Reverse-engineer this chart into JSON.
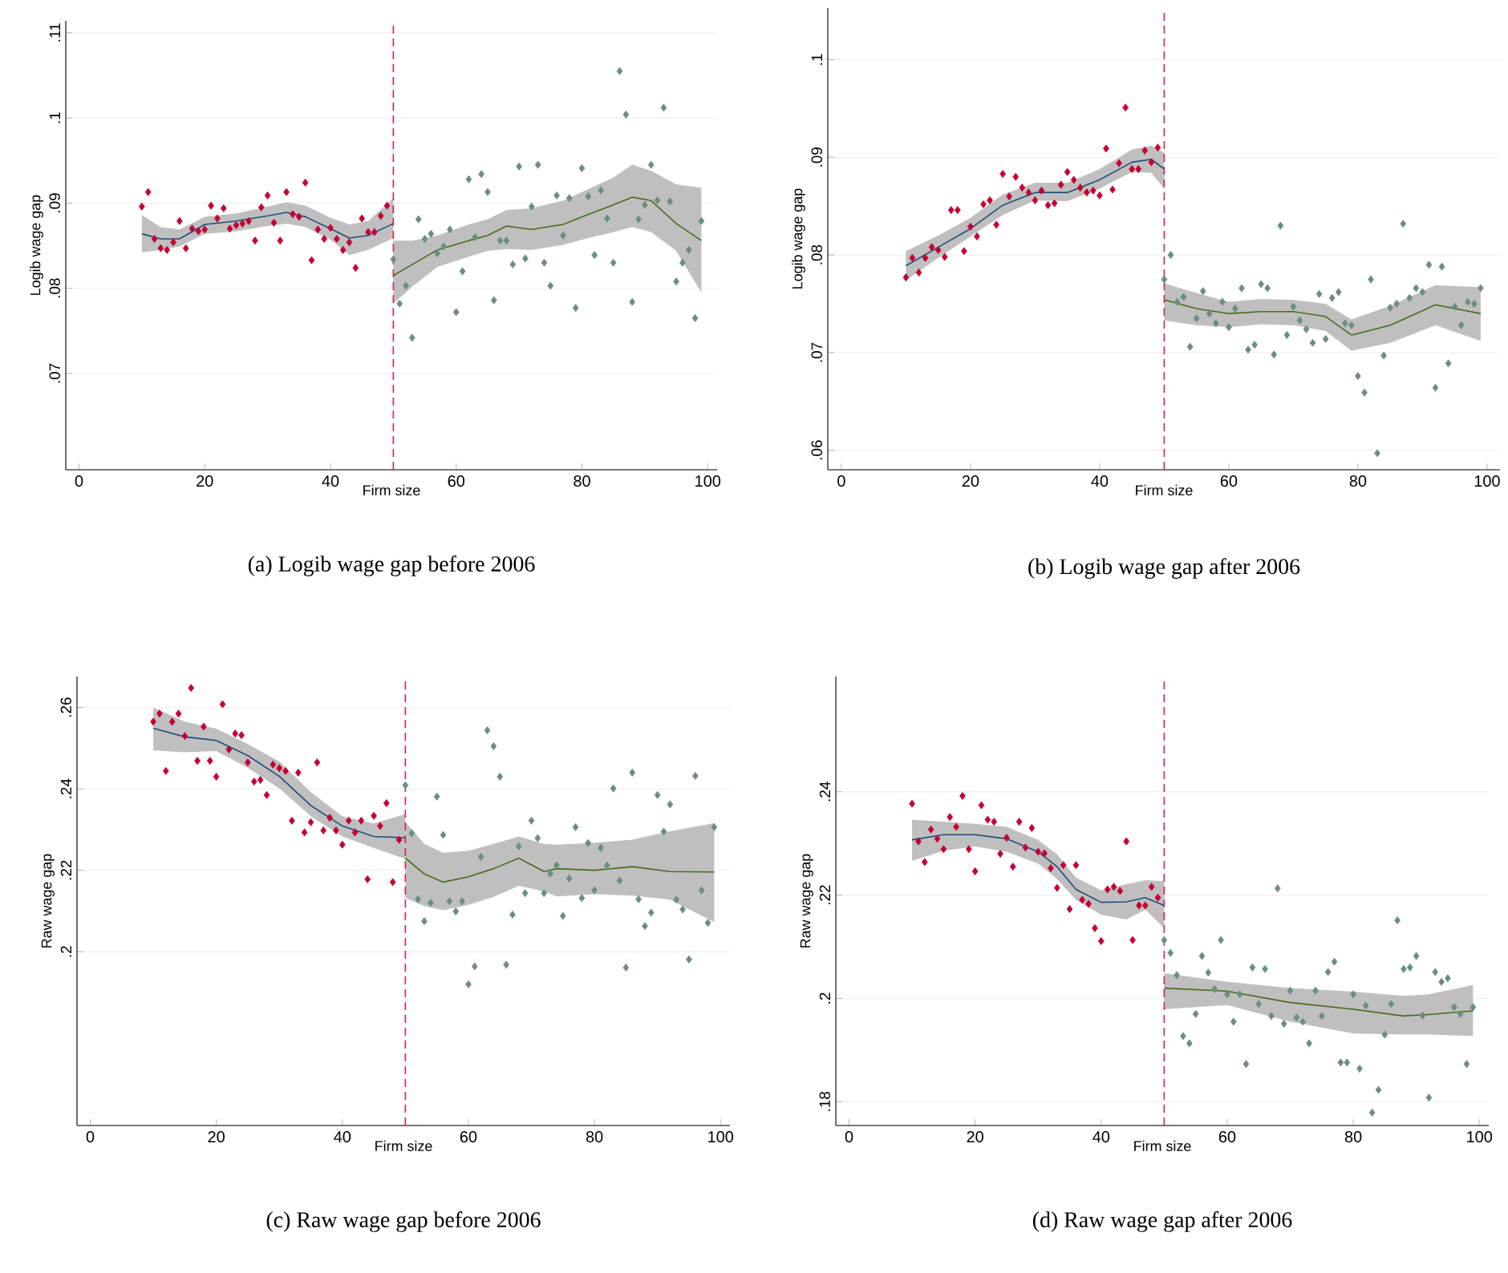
{
  "chart_data": [
    {
      "type": "scatter",
      "title": "(a) Logib wage gap before 2006",
      "xlabel": "Firm size",
      "ylabel": "Logib wage gap",
      "xlim": [
        -2.1,
        101.5
      ],
      "ylim": [
        0.0587,
        0.1114
      ],
      "xticks": [
        0,
        20,
        40,
        60,
        80,
        100
      ],
      "yticks": [
        {
          "value": 0.07,
          "label": ".07"
        },
        {
          "value": 0.08,
          "label": ".08"
        },
        {
          "value": 0.09,
          "label": ".09"
        },
        {
          "value": 0.1,
          "label": ".1"
        },
        {
          "value": 0.11,
          "label": ".11"
        }
      ],
      "grid": "y",
      "ref_lines": [
        {
          "axis": "x",
          "value": 50,
          "color": "#d6204a",
          "line_style": "dashed"
        }
      ],
      "series": [
        {
          "type": "line",
          "color": "#1f4e79",
          "marker": "none",
          "x": [
            10,
            13,
            16,
            20,
            25,
            30,
            33,
            36,
            40,
            43,
            46,
            50
          ],
          "values": [
            0.0864,
            0.0858,
            0.0858,
            0.0875,
            0.0879,
            0.0885,
            0.0889,
            0.0884,
            0.087,
            0.0859,
            0.0862,
            0.0876
          ],
          "lower": [
            0.0842,
            0.0845,
            0.0849,
            0.0864,
            0.0867,
            0.0873,
            0.0876,
            0.0872,
            0.0857,
            0.0839,
            0.0845,
            0.0859
          ],
          "upper": [
            0.0886,
            0.0872,
            0.0869,
            0.0884,
            0.0888,
            0.0896,
            0.0901,
            0.0897,
            0.0883,
            0.0875,
            0.0879,
            0.0906
          ]
        },
        {
          "type": "line",
          "color": "#4a6b1e",
          "marker": "none",
          "x": [
            50,
            53,
            57,
            62,
            65,
            68,
            72,
            77,
            80,
            85,
            88,
            91,
            95,
            99
          ],
          "values": [
            0.0815,
            0.0828,
            0.0845,
            0.0856,
            0.0862,
            0.0873,
            0.0869,
            0.0875,
            0.0884,
            0.0898,
            0.0907,
            0.0903,
            0.0876,
            0.0856
          ],
          "lower": [
            0.0782,
            0.0802,
            0.0825,
            0.0837,
            0.0844,
            0.0846,
            0.0845,
            0.0851,
            0.0857,
            0.0866,
            0.0872,
            0.0866,
            0.0844,
            0.0795
          ],
          "upper": [
            0.0856,
            0.0856,
            0.0862,
            0.0875,
            0.0881,
            0.0892,
            0.0894,
            0.0903,
            0.0913,
            0.093,
            0.0945,
            0.0938,
            0.0922,
            0.0918
          ]
        },
        {
          "color": "#c40233",
          "marker": "diamond",
          "x": [
            10,
            11,
            12,
            13,
            14,
            15,
            16,
            17,
            18,
            19,
            20,
            21,
            22,
            23,
            24,
            25,
            26,
            27,
            28,
            29,
            30,
            31,
            32,
            33,
            34,
            35,
            36,
            37,
            38,
            39,
            40,
            41,
            42,
            43,
            44,
            45,
            46,
            47,
            48,
            49
          ],
          "values": [
            0.0896,
            0.0913,
            0.0858,
            0.0847,
            0.0845,
            0.0854,
            0.0879,
            0.0847,
            0.087,
            0.0867,
            0.0869,
            0.0897,
            0.0882,
            0.0894,
            0.087,
            0.0874,
            0.0876,
            0.0879,
            0.0856,
            0.0895,
            0.0909,
            0.0877,
            0.0856,
            0.0913,
            0.0887,
            0.0884,
            0.0924,
            0.0833,
            0.0869,
            0.0858,
            0.0871,
            0.0858,
            0.0845,
            0.0854,
            0.0824,
            0.0882,
            0.0866,
            0.0866,
            0.0885,
            0.0897
          ]
        },
        {
          "color": "#6b8e7f",
          "marker": "diamond",
          "x": [
            50,
            51,
            52,
            53,
            54,
            55,
            56,
            57,
            58,
            59,
            60,
            61,
            62,
            63,
            64,
            65,
            66,
            67,
            68,
            69,
            70,
            71,
            72,
            73,
            74,
            75,
            76,
            77,
            78,
            79,
            80,
            81,
            82,
            83,
            84,
            85,
            86,
            87,
            88,
            89,
            90,
            91,
            92,
            93,
            94,
            95,
            96,
            97,
            98,
            99
          ],
          "values": [
            0.0834,
            0.0782,
            0.0803,
            0.0742,
            0.0881,
            0.0858,
            0.0864,
            0.0841,
            0.0849,
            0.0869,
            0.0772,
            0.082,
            0.0928,
            0.086,
            0.0934,
            0.0913,
            0.0786,
            0.0856,
            0.0856,
            0.0828,
            0.0943,
            0.0835,
            0.0896,
            0.0945,
            0.083,
            0.0803,
            0.0909,
            0.0862,
            0.0906,
            0.0777,
            0.0941,
            0.0908,
            0.0839,
            0.0915,
            0.0882,
            0.083,
            0.1055,
            0.1004,
            0.0784,
            0.0881,
            0.0898,
            0.0945,
            0.0903,
            0.1012,
            0.0902,
            0.0808,
            0.083,
            0.0845,
            0.0765,
            0.0879
          ]
        }
      ]
    },
    {
      "type": "scatter",
      "title": "(b) Logib wage gap after 2006",
      "xlabel": "Firm size",
      "ylabel": "Logib wage gap",
      "xlim": [
        -2.1,
        102
      ],
      "ylim": [
        0.058,
        0.1053
      ],
      "xticks": [
        0,
        20,
        40,
        60,
        80,
        100
      ],
      "yticks": [
        {
          "value": 0.06,
          "label": ".06"
        },
        {
          "value": 0.07,
          "label": ".07"
        },
        {
          "value": 0.08,
          "label": ".08"
        },
        {
          "value": 0.09,
          "label": ".09"
        },
        {
          "value": 0.1,
          "label": ".1"
        }
      ],
      "grid": "y",
      "ref_lines": [
        {
          "axis": "x",
          "value": 50,
          "color": "#d6204a",
          "line_style": "dashed"
        }
      ],
      "series": [
        {
          "type": "line",
          "color": "#1f4e79",
          "marker": "none",
          "x": [
            10,
            15,
            20,
            25,
            30,
            35,
            40,
            45,
            48,
            50
          ],
          "values": [
            0.0789,
            0.0808,
            0.0827,
            0.0851,
            0.0864,
            0.0864,
            0.0877,
            0.0895,
            0.0898,
            0.0888
          ],
          "lower": [
            0.0774,
            0.0797,
            0.0819,
            0.0841,
            0.0856,
            0.0855,
            0.0868,
            0.0885,
            0.0884,
            0.0868
          ],
          "upper": [
            0.0804,
            0.082,
            0.0838,
            0.0862,
            0.0874,
            0.0874,
            0.0888,
            0.0908,
            0.0912,
            0.0905
          ]
        },
        {
          "type": "line",
          "color": "#4a6b1e",
          "marker": "none",
          "x": [
            50,
            55,
            60,
            65,
            70,
            75,
            79,
            85,
            92,
            99
          ],
          "values": [
            0.0754,
            0.0745,
            0.074,
            0.0742,
            0.0742,
            0.0737,
            0.0718,
            0.0728,
            0.0749,
            0.074
          ],
          "lower": [
            0.0733,
            0.0728,
            0.0726,
            0.0729,
            0.0728,
            0.0722,
            0.0702,
            0.071,
            0.0728,
            0.0712
          ],
          "upper": [
            0.0771,
            0.0761,
            0.0752,
            0.0755,
            0.0754,
            0.075,
            0.0734,
            0.0748,
            0.0769,
            0.0767
          ]
        },
        {
          "color": "#c40233",
          "marker": "diamond",
          "x": [
            10,
            11,
            12,
            13,
            14,
            15,
            16,
            17,
            18,
            19,
            20,
            21,
            22,
            23,
            24,
            25,
            26,
            27,
            28,
            29,
            30,
            31,
            32,
            33,
            34,
            35,
            36,
            37,
            38,
            39,
            40,
            41,
            42,
            43,
            44,
            45,
            46,
            47,
            48,
            49
          ],
          "values": [
            0.0777,
            0.0797,
            0.0782,
            0.0797,
            0.0808,
            0.0805,
            0.0798,
            0.0846,
            0.0846,
            0.0804,
            0.0829,
            0.0819,
            0.0852,
            0.0856,
            0.0831,
            0.0883,
            0.086,
            0.088,
            0.0869,
            0.0864,
            0.0856,
            0.0866,
            0.0851,
            0.0853,
            0.0872,
            0.0885,
            0.0877,
            0.0869,
            0.0864,
            0.0866,
            0.0861,
            0.0909,
            0.0867,
            0.0894,
            0.0951,
            0.0888,
            0.0888,
            0.0907,
            0.0895,
            0.091
          ]
        },
        {
          "color": "#6b8e7f",
          "marker": "diamond",
          "x": [
            50,
            51,
            52,
            53,
            54,
            55,
            56,
            57,
            58,
            59,
            60,
            61,
            62,
            63,
            64,
            65,
            66,
            67,
            68,
            69,
            70,
            71,
            72,
            73,
            74,
            75,
            76,
            77,
            78,
            79,
            80,
            81,
            82,
            83,
            84,
            85,
            86,
            87,
            88,
            89,
            90,
            91,
            92,
            93,
            94,
            95,
            96,
            97,
            98,
            99
          ],
          "values": [
            0.0775,
            0.08,
            0.0752,
            0.0757,
            0.0706,
            0.0735,
            0.0763,
            0.074,
            0.073,
            0.0752,
            0.0726,
            0.0745,
            0.0766,
            0.0703,
            0.0708,
            0.077,
            0.0766,
            0.0698,
            0.083,
            0.0718,
            0.0747,
            0.0733,
            0.0724,
            0.071,
            0.076,
            0.0714,
            0.0756,
            0.0762,
            0.073,
            0.0728,
            0.0676,
            0.0659,
            0.0775,
            0.0597,
            0.0697,
            0.0746,
            0.075,
            0.0832,
            0.0756,
            0.0766,
            0.0762,
            0.079,
            0.0664,
            0.0788,
            0.0689,
            0.0747,
            0.0728,
            0.0752,
            0.075,
            0.0766
          ]
        }
      ]
    },
    {
      "type": "scatter",
      "title": "(c) Raw wage gap before 2006",
      "xlabel": "Firm size",
      "ylabel": "Raw wage gap",
      "xlim": [
        -2.1,
        101.5
      ],
      "ylim": [
        0.1573,
        0.2676
      ],
      "xticks": [
        0,
        20,
        40,
        60,
        80,
        100
      ],
      "yticks": [
        {
          "value": 0.2,
          "label": ".2"
        },
        {
          "value": 0.22,
          "label": ".22"
        },
        {
          "value": 0.24,
          "label": ".24"
        },
        {
          "value": 0.26,
          "label": ".26"
        }
      ],
      "grid": "y",
      "ref_lines": [
        {
          "axis": "x",
          "value": 50,
          "color": "#d6204a",
          "line_style": "dashed"
        }
      ],
      "series": [
        {
          "type": "line",
          "color": "#1f4e79",
          "marker": "none",
          "x": [
            10,
            15,
            20,
            25,
            30,
            35,
            40,
            45,
            50
          ],
          "values": [
            0.2549,
            0.2528,
            0.2519,
            0.2482,
            0.2431,
            0.2359,
            0.2309,
            0.2283,
            0.228
          ],
          "lower": [
            0.2495,
            0.249,
            0.2493,
            0.2452,
            0.2401,
            0.2333,
            0.2283,
            0.2255,
            0.2228
          ],
          "upper": [
            0.26,
            0.2565,
            0.2548,
            0.251,
            0.2467,
            0.2392,
            0.2333,
            0.2315,
            0.2338
          ]
        },
        {
          "type": "line",
          "color": "#4a6b1e",
          "marker": "none",
          "x": [
            50,
            53,
            56,
            60,
            64,
            68,
            72,
            74,
            80,
            86,
            92,
            99
          ],
          "values": [
            0.223,
            0.2191,
            0.2171,
            0.2184,
            0.2204,
            0.223,
            0.2197,
            0.2204,
            0.22,
            0.2209,
            0.2197,
            0.2196
          ],
          "lower": [
            0.2132,
            0.2112,
            0.2102,
            0.2115,
            0.2135,
            0.2162,
            0.2148,
            0.2136,
            0.2141,
            0.2138,
            0.2128,
            0.2073
          ],
          "upper": [
            0.2319,
            0.2265,
            0.2243,
            0.2248,
            0.2265,
            0.2283,
            0.2265,
            0.2263,
            0.2268,
            0.2275,
            0.2296,
            0.2316
          ]
        },
        {
          "color": "#c40233",
          "marker": "diamond",
          "x": [
            10,
            11,
            12,
            13,
            14,
            15,
            16,
            17,
            18,
            19,
            20,
            21,
            22,
            23,
            24,
            25,
            26,
            27,
            28,
            29,
            30,
            31,
            32,
            33,
            34,
            35,
            36,
            37,
            38,
            39,
            40,
            41,
            42,
            43,
            44,
            45,
            46,
            47,
            48,
            49
          ],
          "values": [
            0.2565,
            0.2585,
            0.2444,
            0.2565,
            0.2585,
            0.253,
            0.2648,
            0.2469,
            0.2553,
            0.2469,
            0.243,
            0.2608,
            0.2497,
            0.2536,
            0.2532,
            0.2465,
            0.2418,
            0.2422,
            0.2385,
            0.246,
            0.2451,
            0.2444,
            0.2322,
            0.244,
            0.2293,
            0.2318,
            0.2465,
            0.2298,
            0.2329,
            0.2298,
            0.2263,
            0.2322,
            0.2293,
            0.2322,
            0.2178,
            0.2334,
            0.2309,
            0.2365,
            0.2171,
            0.2275
          ]
        },
        {
          "color": "#6b8e7f",
          "marker": "diamond",
          "x": [
            50,
            51,
            52,
            53,
            54,
            55,
            56,
            57,
            58,
            59,
            60,
            61,
            62,
            63,
            64,
            65,
            66,
            67,
            68,
            69,
            70,
            71,
            72,
            73,
            74,
            75,
            76,
            77,
            78,
            79,
            80,
            81,
            82,
            83,
            84,
            85,
            86,
            87,
            88,
            89,
            90,
            91,
            92,
            93,
            94,
            95,
            96,
            97,
            98,
            99
          ],
          "values": [
            0.2409,
            0.2291,
            0.2129,
            0.2075,
            0.212,
            0.2381,
            0.2287,
            0.2124,
            0.2099,
            0.2124,
            0.192,
            0.1964,
            0.2233,
            0.2544,
            0.2505,
            0.243,
            0.1968,
            0.2091,
            0.2259,
            0.2144,
            0.2322,
            0.2279,
            0.2144,
            0.2192,
            0.2212,
            0.2088,
            0.218,
            0.2306,
            0.2132,
            0.2267,
            0.2151,
            0.2255,
            0.2212,
            0.2401,
            0.2175,
            0.1961,
            0.244,
            0.2129,
            0.2063,
            0.2096,
            0.2385,
            0.2295,
            0.2362,
            0.2128,
            0.2104,
            0.1981,
            0.2432,
            0.2151,
            0.2071,
            0.2306
          ]
        }
      ]
    },
    {
      "type": "scatter",
      "title": "(d) Raw wage gap after 2006",
      "xlabel": "Firm size",
      "ylabel": "Raw wage gap",
      "xlim": [
        -2.1,
        101.5
      ],
      "ylim": [
        0.1754,
        0.2623
      ],
      "xticks": [
        0,
        20,
        40,
        60,
        80,
        100
      ],
      "yticks": [
        {
          "value": 0.18,
          "label": ".18"
        },
        {
          "value": 0.2,
          "label": ".2"
        },
        {
          "value": 0.22,
          "label": ".22"
        },
        {
          "value": 0.24,
          "label": ".24"
        }
      ],
      "grid": "y",
      "ref_lines": [
        {
          "axis": "x",
          "value": 50,
          "color": "#d6204a",
          "line_style": "dashed"
        }
      ],
      "series": [
        {
          "type": "line",
          "color": "#1f4e79",
          "marker": "none",
          "x": [
            10,
            15,
            20,
            25,
            30,
            33,
            36,
            40,
            44,
            47,
            50
          ],
          "values": [
            0.2307,
            0.2317,
            0.2317,
            0.2309,
            0.2284,
            0.2255,
            0.2211,
            0.2186,
            0.2187,
            0.2195,
            0.218
          ],
          "lower": [
            0.2266,
            0.2286,
            0.2294,
            0.2284,
            0.2261,
            0.2231,
            0.2191,
            0.2162,
            0.2153,
            0.2172,
            0.2136
          ],
          "upper": [
            0.2346,
            0.2342,
            0.2338,
            0.2332,
            0.2307,
            0.2279,
            0.2234,
            0.2209,
            0.2221,
            0.2229,
            0.2227
          ]
        },
        {
          "type": "line",
          "color": "#4a6b1e",
          "marker": "none",
          "x": [
            50,
            60,
            70,
            80,
            88,
            92,
            99
          ],
          "values": [
            0.202,
            0.2014,
            0.1992,
            0.1979,
            0.1966,
            0.1969,
            0.1976
          ],
          "lower": [
            0.1979,
            0.1987,
            0.1955,
            0.1932,
            0.193,
            0.193,
            0.1927
          ],
          "upper": [
            0.2049,
            0.2032,
            0.202,
            0.2013,
            0.2005,
            0.2008,
            0.2026
          ]
        },
        {
          "color": "#c40233",
          "marker": "diamond",
          "x": [
            10,
            11,
            12,
            13,
            14,
            15,
            16,
            17,
            18,
            19,
            20,
            21,
            22,
            23,
            24,
            25,
            26,
            27,
            28,
            29,
            30,
            31,
            32,
            33,
            34,
            35,
            36,
            37,
            38,
            39,
            40,
            41,
            42,
            43,
            44,
            45,
            46,
            47,
            48,
            49
          ],
          "values": [
            0.2377,
            0.2304,
            0.2264,
            0.2327,
            0.2309,
            0.2289,
            0.2351,
            0.2332,
            0.2392,
            0.2289,
            0.2246,
            0.2374,
            0.2346,
            0.2342,
            0.228,
            0.2311,
            0.2255,
            0.2342,
            0.2292,
            0.233,
            0.2284,
            0.2281,
            0.2252,
            0.2214,
            0.2258,
            0.2173,
            0.2258,
            0.2191,
            0.2183,
            0.2136,
            0.2111,
            0.2211,
            0.2216,
            0.2208,
            0.2304,
            0.2113,
            0.218,
            0.218,
            0.2216,
            0.2195
          ]
        },
        {
          "color": "#6b8e7f",
          "marker": "diamond",
          "x": [
            50,
            51,
            52,
            53,
            54,
            55,
            56,
            57,
            58,
            59,
            60,
            61,
            62,
            63,
            64,
            65,
            66,
            67,
            68,
            69,
            70,
            71,
            72,
            73,
            74,
            75,
            76,
            77,
            78,
            79,
            80,
            81,
            82,
            83,
            84,
            85,
            86,
            87,
            88,
            89,
            90,
            91,
            92,
            93,
            94,
            95,
            96,
            97,
            98,
            99
          ],
          "values": [
            0.2113,
            0.2088,
            0.2045,
            0.1927,
            0.1913,
            0.197,
            0.2082,
            0.205,
            0.2018,
            0.2113,
            0.2008,
            0.1955,
            0.2008,
            0.1873,
            0.206,
            0.1989,
            0.2057,
            0.1966,
            0.2213,
            0.1951,
            0.2015,
            0.1963,
            0.1955,
            0.1913,
            0.2015,
            0.1966,
            0.2051,
            0.2071,
            0.1876,
            0.1876,
            0.2008,
            0.1864,
            0.1986,
            0.1779,
            0.1823,
            0.193,
            0.1989,
            0.2151,
            0.2057,
            0.206,
            0.2082,
            0.1967,
            0.1808,
            0.2051,
            0.2032,
            0.2039,
            0.1983,
            0.197,
            0.1873,
            0.1983
          ]
        }
      ]
    }
  ]
}
